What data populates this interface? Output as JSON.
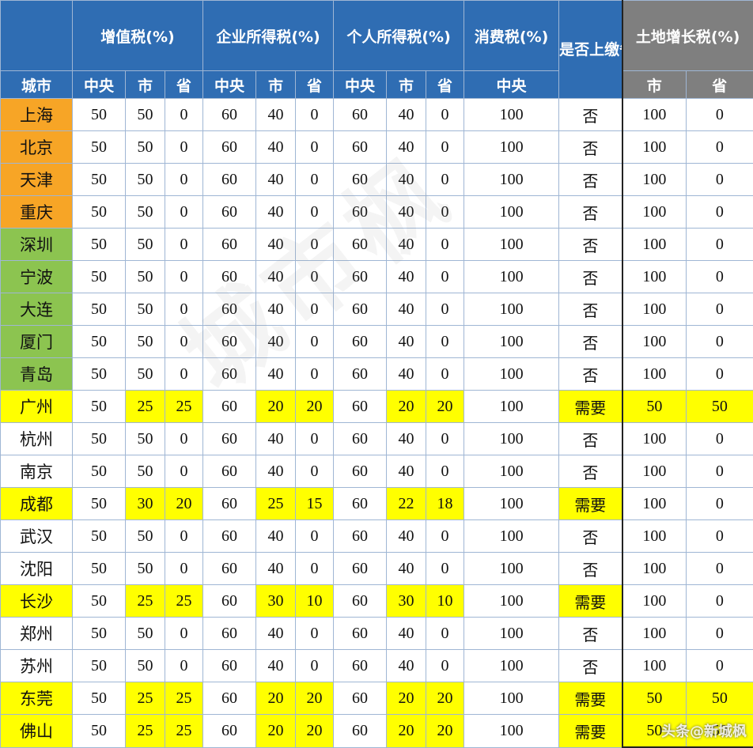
{
  "header": {
    "groups": {
      "vat": "增值税(%)",
      "corp": "企业所得税(%)",
      "personal": "个人所得税(%)",
      "consumption": "消费税(%)",
      "submit": "是否上缴省",
      "land": "土地增长税(%)"
    },
    "sub": {
      "city": "城市",
      "central": "中央",
      "city_level": "市",
      "province": "省"
    }
  },
  "rows": [
    {
      "city": "上海",
      "vc": "50",
      "vm": "50",
      "vp": "0",
      "cc": "60",
      "cm": "40",
      "cp": "0",
      "pc": "60",
      "pm": "40",
      "pp": "0",
      "cons": "100",
      "sub": "否",
      "lm": "100",
      "lp": "0"
    },
    {
      "city": "北京",
      "vc": "50",
      "vm": "50",
      "vp": "0",
      "cc": "60",
      "cm": "40",
      "cp": "0",
      "pc": "60",
      "pm": "40",
      "pp": "0",
      "cons": "100",
      "sub": "否",
      "lm": "100",
      "lp": "0"
    },
    {
      "city": "天津",
      "vc": "50",
      "vm": "50",
      "vp": "0",
      "cc": "60",
      "cm": "40",
      "cp": "0",
      "pc": "60",
      "pm": "40",
      "pp": "0",
      "cons": "100",
      "sub": "否",
      "lm": "100",
      "lp": "0"
    },
    {
      "city": "重庆",
      "vc": "50",
      "vm": "50",
      "vp": "0",
      "cc": "60",
      "cm": "40",
      "cp": "0",
      "pc": "60",
      "pm": "40",
      "pp": "0",
      "cons": "100",
      "sub": "否",
      "lm": "100",
      "lp": "0"
    },
    {
      "city": "深圳",
      "vc": "50",
      "vm": "50",
      "vp": "0",
      "cc": "60",
      "cm": "40",
      "cp": "0",
      "pc": "60",
      "pm": "40",
      "pp": "0",
      "cons": "100",
      "sub": "否",
      "lm": "100",
      "lp": "0"
    },
    {
      "city": "宁波",
      "vc": "50",
      "vm": "50",
      "vp": "0",
      "cc": "60",
      "cm": "40",
      "cp": "0",
      "pc": "60",
      "pm": "40",
      "pp": "0",
      "cons": "100",
      "sub": "否",
      "lm": "100",
      "lp": "0"
    },
    {
      "city": "大连",
      "vc": "50",
      "vm": "50",
      "vp": "0",
      "cc": "60",
      "cm": "40",
      "cp": "0",
      "pc": "60",
      "pm": "40",
      "pp": "0",
      "cons": "100",
      "sub": "否",
      "lm": "100",
      "lp": "0"
    },
    {
      "city": "厦门",
      "vc": "50",
      "vm": "50",
      "vp": "0",
      "cc": "60",
      "cm": "40",
      "cp": "0",
      "pc": "60",
      "pm": "40",
      "pp": "0",
      "cons": "100",
      "sub": "否",
      "lm": "100",
      "lp": "0"
    },
    {
      "city": "青岛",
      "vc": "50",
      "vm": "50",
      "vp": "0",
      "cc": "60",
      "cm": "40",
      "cp": "0",
      "pc": "60",
      "pm": "40",
      "pp": "0",
      "cons": "100",
      "sub": "否",
      "lm": "100",
      "lp": "0"
    },
    {
      "city": "广州",
      "vc": "50",
      "vm": "25",
      "vp": "25",
      "cc": "60",
      "cm": "20",
      "cp": "20",
      "pc": "60",
      "pm": "20",
      "pp": "20",
      "cons": "100",
      "sub": "需要",
      "lm": "50",
      "lp": "50"
    },
    {
      "city": "杭州",
      "vc": "50",
      "vm": "50",
      "vp": "0",
      "cc": "60",
      "cm": "40",
      "cp": "0",
      "pc": "60",
      "pm": "40",
      "pp": "0",
      "cons": "100",
      "sub": "否",
      "lm": "100",
      "lp": "0"
    },
    {
      "city": "南京",
      "vc": "50",
      "vm": "50",
      "vp": "0",
      "cc": "60",
      "cm": "40",
      "cp": "0",
      "pc": "60",
      "pm": "40",
      "pp": "0",
      "cons": "100",
      "sub": "否",
      "lm": "100",
      "lp": "0"
    },
    {
      "city": "成都",
      "vc": "50",
      "vm": "30",
      "vp": "20",
      "cc": "60",
      "cm": "25",
      "cp": "15",
      "pc": "60",
      "pm": "22",
      "pp": "18",
      "cons": "100",
      "sub": "需要",
      "lm": "100",
      "lp": "0"
    },
    {
      "city": "武汉",
      "vc": "50",
      "vm": "50",
      "vp": "0",
      "cc": "60",
      "cm": "40",
      "cp": "0",
      "pc": "60",
      "pm": "40",
      "pp": "0",
      "cons": "100",
      "sub": "否",
      "lm": "100",
      "lp": "0"
    },
    {
      "city": "沈阳",
      "vc": "50",
      "vm": "50",
      "vp": "0",
      "cc": "60",
      "cm": "40",
      "cp": "0",
      "pc": "60",
      "pm": "40",
      "pp": "0",
      "cons": "100",
      "sub": "否",
      "lm": "100",
      "lp": "0"
    },
    {
      "city": "长沙",
      "vc": "50",
      "vm": "25",
      "vp": "25",
      "cc": "60",
      "cm": "30",
      "cp": "10",
      "pc": "60",
      "pm": "30",
      "pp": "10",
      "cons": "100",
      "sub": "需要",
      "lm": "100",
      "lp": "0"
    },
    {
      "city": "郑州",
      "vc": "50",
      "vm": "50",
      "vp": "0",
      "cc": "60",
      "cm": "40",
      "cp": "0",
      "pc": "60",
      "pm": "40",
      "pp": "0",
      "cons": "100",
      "sub": "否",
      "lm": "100",
      "lp": "0"
    },
    {
      "city": "苏州",
      "vc": "50",
      "vm": "50",
      "vp": "0",
      "cc": "60",
      "cm": "40",
      "cp": "0",
      "pc": "60",
      "pm": "40",
      "pp": "0",
      "cons": "100",
      "sub": "否",
      "lm": "100",
      "lp": "0"
    },
    {
      "city": "东莞",
      "vc": "50",
      "vm": "25",
      "vp": "25",
      "cc": "60",
      "cm": "20",
      "cp": "20",
      "pc": "60",
      "pm": "20",
      "pp": "20",
      "cons": "100",
      "sub": "需要",
      "lm": "50",
      "lp": "50"
    },
    {
      "city": "佛山",
      "vc": "50",
      "vm": "25",
      "vp": "25",
      "cc": "60",
      "cm": "20",
      "cp": "20",
      "pc": "60",
      "pm": "20",
      "pp": "20",
      "cons": "100",
      "sub": "需要",
      "lm": "50",
      "lp": "50"
    }
  ],
  "watermark": "头条@新城枫"
}
